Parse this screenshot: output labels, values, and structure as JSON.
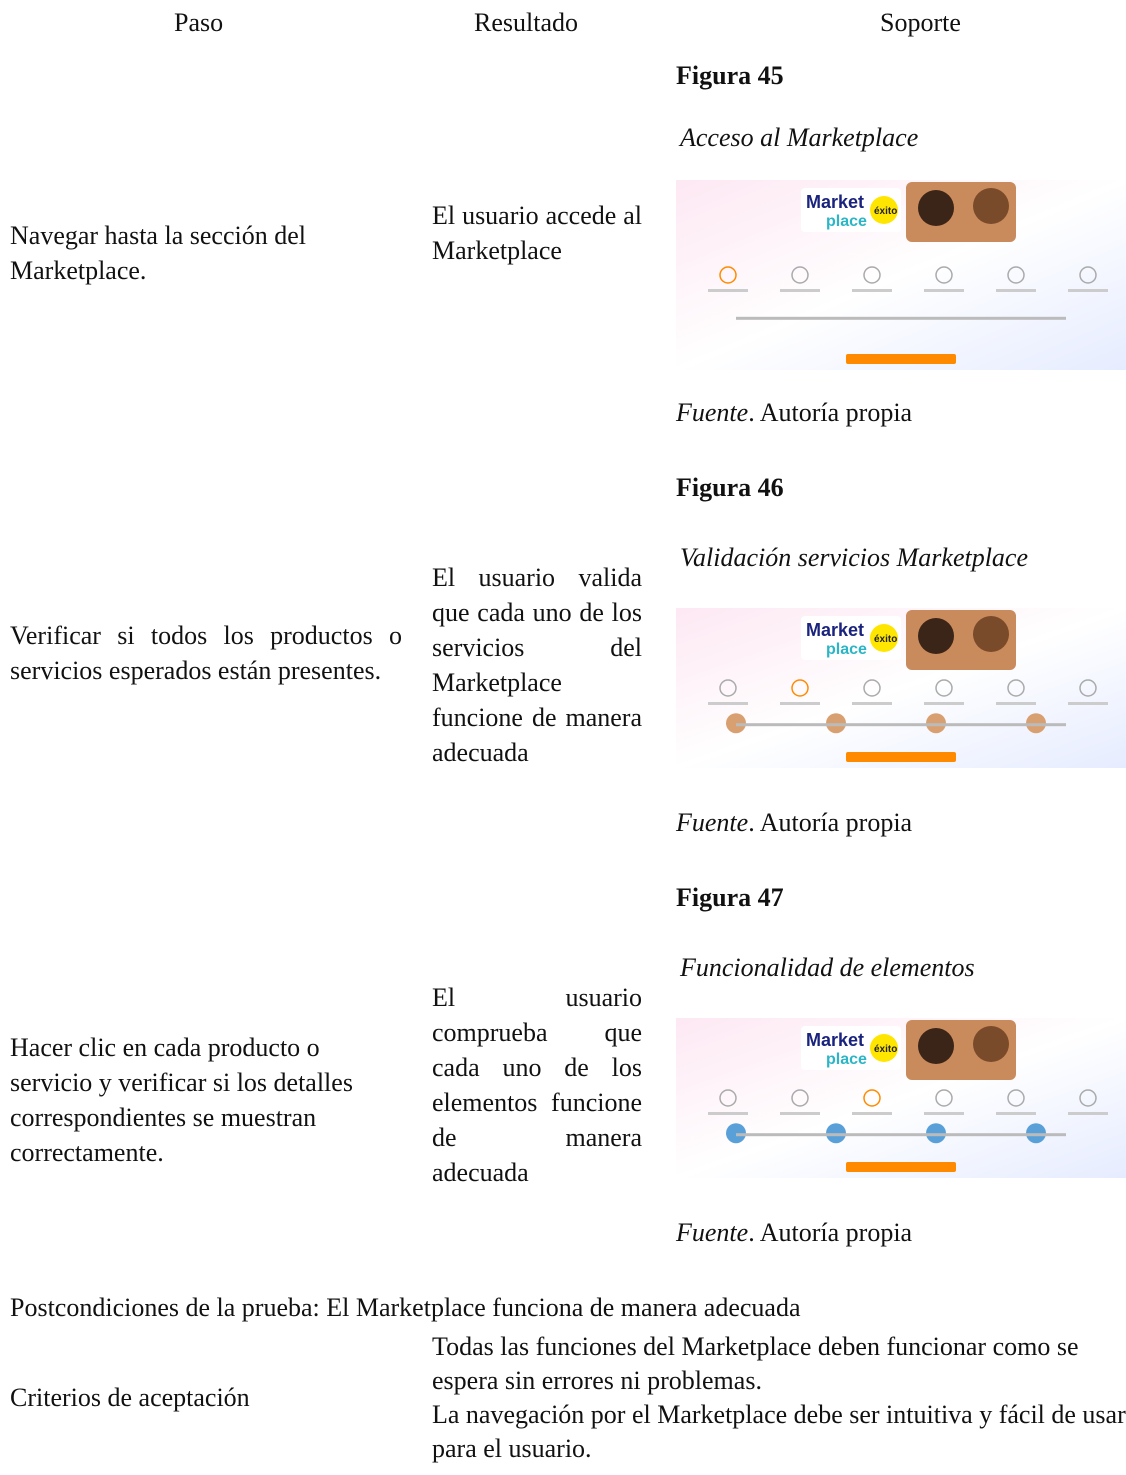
{
  "table": {
    "headers": [
      "Paso",
      "Resultado",
      "Soporte"
    ],
    "rows": [
      {
        "step": "Navegar hasta la sección del Marketplace.",
        "result": "El usuario accede al Marketplace",
        "figure": {
          "number": "Figura 45",
          "caption": "Acceso al Marketplace",
          "source_label": "Fuente",
          "source_text": ". Autoría propia",
          "logo": [
            "Market",
            "place",
            "éxito"
          ]
        }
      },
      {
        "step": "Verificar si todos los productos o servicios esperados están presentes.",
        "result": "El usuario valida que cada uno de los servicios del Marketplace funcione de manera adecuada",
        "figure": {
          "number": "Figura 46",
          "caption": "Validación servicios Marketplace",
          "source_label": "Fuente",
          "source_text": ". Autoría propia",
          "logo": [
            "Market",
            "place",
            "éxito"
          ]
        }
      },
      {
        "step": "Hacer clic en cada producto o servicio y verificar si los detalles correspondientes se muestran correctamente.",
        "result": "El usuario comprueba que cada uno de los elementos funcione de manera adecuada",
        "figure": {
          "number": "Figura 47",
          "caption": "Funcionalidad de elementos",
          "source_label": "Fuente",
          "source_text": ". Autoría propia",
          "logo": [
            "Market",
            "place",
            "éxito"
          ]
        }
      }
    ],
    "postconditions": "Postcondiciones de la prueba: El Marketplace funciona de manera adecuada",
    "acceptance": {
      "label": "Criterios de aceptación",
      "lines": [
        "Todas las funciones del Marketplace deben funcionar como se espera sin errores ni problemas.",
        "La navegación por el Marketplace debe ser intuitiva y fácil de usar para el usuario."
      ]
    }
  }
}
